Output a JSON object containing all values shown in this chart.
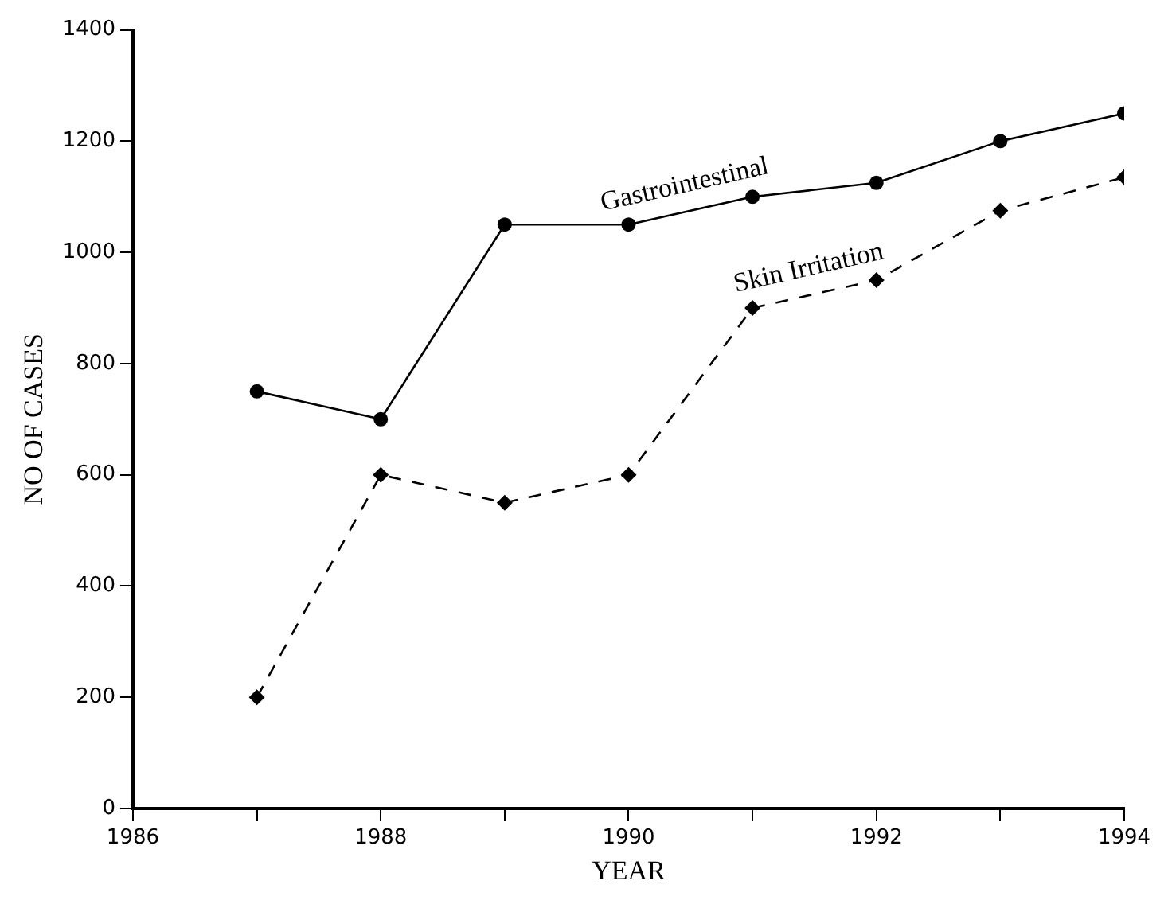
{
  "chart_data": {
    "type": "line",
    "xlabel": "YEAR",
    "ylabel": "NO OF CASES",
    "x": [
      1987,
      1988,
      1989,
      1990,
      1991,
      1992,
      1993,
      1994
    ],
    "series": [
      {
        "name": "Gastrointestinal",
        "color": "#000000",
        "marker": "circle",
        "line_style": "solid",
        "values": [
          750,
          700,
          1050,
          1050,
          1100,
          1125,
          1200,
          1250
        ]
      },
      {
        "name": "Skin Irritation",
        "color": "#000000",
        "marker": "diamond",
        "line_style": "dashed",
        "values": [
          200,
          600,
          550,
          600,
          900,
          950,
          1075,
          1135
        ]
      }
    ],
    "xlim": [
      1986,
      1994
    ],
    "xticks": [
      1986,
      {
        "value": 1987,
        "label": null
      },
      1988,
      {
        "value": 1989,
        "label": null
      },
      1990,
      {
        "value": 1991,
        "label": null
      },
      1992,
      {
        "value": 1993,
        "label": null
      },
      1994
    ],
    "ylim": [
      0,
      1400
    ],
    "yticks": [
      0,
      200,
      400,
      600,
      800,
      1000,
      1200,
      1400
    ],
    "grid": false,
    "legend": false
  }
}
